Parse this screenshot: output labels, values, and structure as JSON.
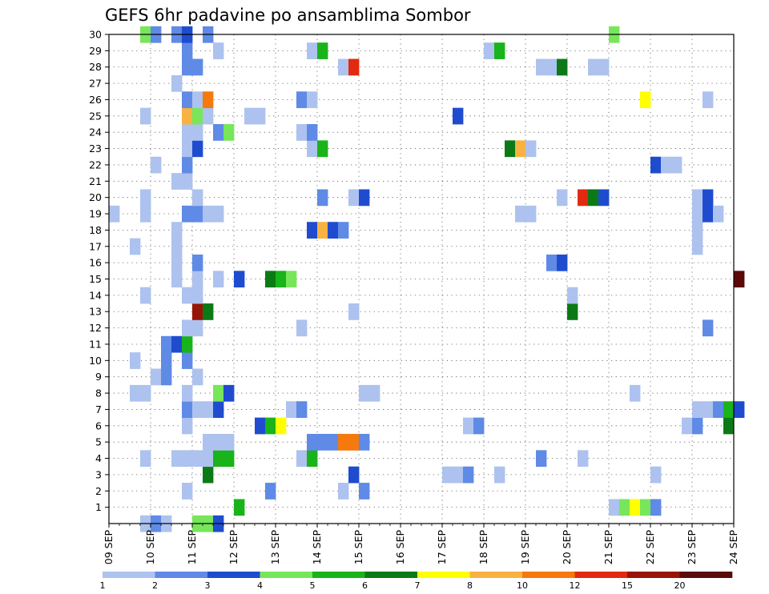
{
  "chart_data": {
    "type": "heatmap",
    "title": "GEFS 6hr padavine po ansamblima Sombor",
    "xlabel": "",
    "ylabel": "",
    "x_tick_labels": [
      "09 SEP",
      "10 SEP",
      "11 SEP",
      "12 SEP",
      "13 SEP",
      "14 SEP",
      "15 SEP",
      "16 SEP",
      "17 SEP",
      "18 SEP",
      "19 SEP",
      "20 SEP",
      "21 SEP",
      "22 SEP",
      "23 SEP",
      "24 SEP"
    ],
    "y_tick_labels": [
      "1",
      "2",
      "3",
      "4",
      "5",
      "6",
      "7",
      "8",
      "9",
      "10",
      "11",
      "12",
      "13",
      "14",
      "15",
      "16",
      "17",
      "18",
      "19",
      "20",
      "21",
      "22",
      "23",
      "24",
      "25",
      "26",
      "27",
      "28",
      "29",
      "30"
    ],
    "x_range": [
      "09 SEP 00z",
      "24 SEP 00z"
    ],
    "x_step_hours": 6,
    "y_range": [
      0,
      30
    ],
    "grid": "dotted",
    "colorbar": {
      "labels": [
        "1",
        "2",
        "3",
        "4",
        "5",
        "6",
        "7",
        "8",
        "10",
        "12",
        "15",
        "20"
      ],
      "colors": [
        "#adc2ee",
        "#5f8ae6",
        "#1f4ccf",
        "#77e65a",
        "#19b31a",
        "#0b7a16",
        "#ffff00",
        "#f8b241",
        "#f5790c",
        "#e22a10",
        "#981407",
        "#5a0a08"
      ]
    },
    "cell_colors": {
      "a": "#adc2ee",
      "b": "#5f8ae6",
      "c": "#1f4ccf",
      "d": "#77e65a",
      "e": "#19b31a",
      "f": "#0b7a16",
      "g": "#ffff00",
      "h": "#f8b241",
      "i": "#f5790c",
      "j": "#e22a10",
      "k": "#981407",
      "l": "#5a0a08"
    },
    "cells": [
      [
        0,
        3,
        "a"
      ],
      [
        0,
        4,
        "b"
      ],
      [
        0,
        5,
        "a"
      ],
      [
        0,
        8,
        "d"
      ],
      [
        0,
        9,
        "d"
      ],
      [
        0,
        10,
        "c"
      ],
      [
        1,
        12,
        "e"
      ],
      [
        1,
        48,
        "a"
      ],
      [
        1,
        49,
        "d"
      ],
      [
        1,
        50,
        "g"
      ],
      [
        1,
        51,
        "d"
      ],
      [
        1,
        52,
        "b"
      ],
      [
        2,
        7,
        "a"
      ],
      [
        2,
        15,
        "b"
      ],
      [
        2,
        22,
        "a"
      ],
      [
        2,
        24,
        "b"
      ],
      [
        3,
        9,
        "f"
      ],
      [
        3,
        23,
        "c"
      ],
      [
        3,
        32,
        "a"
      ],
      [
        3,
        33,
        "a"
      ],
      [
        3,
        34,
        "b"
      ],
      [
        3,
        37,
        "a"
      ],
      [
        3,
        52,
        "a"
      ],
      [
        4,
        3,
        "a"
      ],
      [
        4,
        6,
        "a"
      ],
      [
        4,
        7,
        "a"
      ],
      [
        4,
        8,
        "a"
      ],
      [
        4,
        9,
        "a"
      ],
      [
        4,
        10,
        "e"
      ],
      [
        4,
        11,
        "e"
      ],
      [
        4,
        18,
        "a"
      ],
      [
        4,
        19,
        "e"
      ],
      [
        4,
        41,
        "b"
      ],
      [
        4,
        45,
        "a"
      ],
      [
        5,
        9,
        "a"
      ],
      [
        5,
        10,
        "a"
      ],
      [
        5,
        11,
        "a"
      ],
      [
        5,
        19,
        "b"
      ],
      [
        5,
        20,
        "b"
      ],
      [
        5,
        21,
        "b"
      ],
      [
        5,
        22,
        "i"
      ],
      [
        5,
        23,
        "i"
      ],
      [
        5,
        24,
        "b"
      ],
      [
        6,
        7,
        "a"
      ],
      [
        6,
        14,
        "c"
      ],
      [
        6,
        15,
        "e"
      ],
      [
        6,
        16,
        "g"
      ],
      [
        6,
        34,
        "a"
      ],
      [
        6,
        35,
        "b"
      ],
      [
        6,
        55,
        "a"
      ],
      [
        6,
        56,
        "b"
      ],
      [
        6,
        59,
        "f"
      ],
      [
        7,
        7,
        "b"
      ],
      [
        7,
        8,
        "a"
      ],
      [
        7,
        9,
        "a"
      ],
      [
        7,
        10,
        "c"
      ],
      [
        7,
        17,
        "a"
      ],
      [
        7,
        18,
        "b"
      ],
      [
        7,
        56,
        "a"
      ],
      [
        7,
        57,
        "a"
      ],
      [
        7,
        58,
        "b"
      ],
      [
        7,
        59,
        "e"
      ],
      [
        7,
        60,
        "c"
      ],
      [
        8,
        2,
        "a"
      ],
      [
        8,
        3,
        "a"
      ],
      [
        8,
        7,
        "a"
      ],
      [
        8,
        10,
        "d"
      ],
      [
        8,
        11,
        "c"
      ],
      [
        8,
        24,
        "a"
      ],
      [
        8,
        25,
        "a"
      ],
      [
        8,
        50,
        "a"
      ],
      [
        9,
        4,
        "a"
      ],
      [
        9,
        5,
        "b"
      ],
      [
        9,
        8,
        "a"
      ],
      [
        10,
        2,
        "a"
      ],
      [
        10,
        5,
        "b"
      ],
      [
        10,
        7,
        "b"
      ],
      [
        11,
        5,
        "b"
      ],
      [
        11,
        6,
        "c"
      ],
      [
        11,
        7,
        "e"
      ],
      [
        12,
        7,
        "a"
      ],
      [
        12,
        8,
        "a"
      ],
      [
        12,
        18,
        "a"
      ],
      [
        12,
        57,
        "b"
      ],
      [
        13,
        8,
        "k"
      ],
      [
        13,
        9,
        "f"
      ],
      [
        13,
        23,
        "a"
      ],
      [
        13,
        44,
        "f"
      ],
      [
        14,
        3,
        "a"
      ],
      [
        14,
        7,
        "a"
      ],
      [
        14,
        8,
        "a"
      ],
      [
        14,
        44,
        "a"
      ],
      [
        15,
        6,
        "a"
      ],
      [
        15,
        8,
        "a"
      ],
      [
        15,
        10,
        "a"
      ],
      [
        15,
        12,
        "c"
      ],
      [
        15,
        15,
        "f"
      ],
      [
        15,
        16,
        "e"
      ],
      [
        15,
        17,
        "d"
      ],
      [
        15,
        60,
        "l"
      ],
      [
        16,
        6,
        "a"
      ],
      [
        16,
        8,
        "b"
      ],
      [
        16,
        42,
        "b"
      ],
      [
        16,
        43,
        "c"
      ],
      [
        17,
        2,
        "a"
      ],
      [
        17,
        6,
        "a"
      ],
      [
        17,
        56,
        "a"
      ],
      [
        18,
        6,
        "a"
      ],
      [
        18,
        19,
        "c"
      ],
      [
        18,
        20,
        "h"
      ],
      [
        18,
        21,
        "c"
      ],
      [
        18,
        22,
        "b"
      ],
      [
        18,
        56,
        "a"
      ],
      [
        19,
        0,
        "a"
      ],
      [
        19,
        3,
        "a"
      ],
      [
        19,
        7,
        "b"
      ],
      [
        19,
        8,
        "b"
      ],
      [
        19,
        9,
        "a"
      ],
      [
        19,
        10,
        "a"
      ],
      [
        19,
        39,
        "a"
      ],
      [
        19,
        40,
        "a"
      ],
      [
        19,
        56,
        "a"
      ],
      [
        19,
        57,
        "c"
      ],
      [
        19,
        58,
        "a"
      ],
      [
        20,
        3,
        "a"
      ],
      [
        20,
        8,
        "a"
      ],
      [
        20,
        20,
        "b"
      ],
      [
        20,
        23,
        "a"
      ],
      [
        20,
        24,
        "c"
      ],
      [
        20,
        43,
        "a"
      ],
      [
        20,
        45,
        "j"
      ],
      [
        20,
        46,
        "f"
      ],
      [
        20,
        47,
        "c"
      ],
      [
        20,
        56,
        "a"
      ],
      [
        20,
        57,
        "c"
      ],
      [
        21,
        6,
        "a"
      ],
      [
        21,
        7,
        "a"
      ],
      [
        22,
        4,
        "a"
      ],
      [
        22,
        7,
        "b"
      ],
      [
        22,
        52,
        "c"
      ],
      [
        22,
        53,
        "a"
      ],
      [
        22,
        54,
        "a"
      ],
      [
        23,
        7,
        "a"
      ],
      [
        23,
        8,
        "c"
      ],
      [
        23,
        19,
        "a"
      ],
      [
        23,
        20,
        "e"
      ],
      [
        23,
        38,
        "f"
      ],
      [
        23,
        39,
        "h"
      ],
      [
        23,
        40,
        "a"
      ],
      [
        24,
        7,
        "a"
      ],
      [
        24,
        8,
        "a"
      ],
      [
        24,
        10,
        "b"
      ],
      [
        24,
        11,
        "d"
      ],
      [
        24,
        18,
        "a"
      ],
      [
        24,
        19,
        "b"
      ],
      [
        25,
        3,
        "a"
      ],
      [
        25,
        7,
        "h"
      ],
      [
        25,
        8,
        "d"
      ],
      [
        25,
        9,
        "a"
      ],
      [
        25,
        13,
        "a"
      ],
      [
        25,
        14,
        "a"
      ],
      [
        25,
        33,
        "c"
      ],
      [
        26,
        7,
        "b"
      ],
      [
        26,
        8,
        "a"
      ],
      [
        26,
        9,
        "i"
      ],
      [
        26,
        18,
        "b"
      ],
      [
        26,
        19,
        "a"
      ],
      [
        26,
        51,
        "g"
      ],
      [
        26,
        57,
        "a"
      ],
      [
        27,
        6,
        "a"
      ],
      [
        28,
        7,
        "b"
      ],
      [
        28,
        8,
        "b"
      ],
      [
        28,
        22,
        "a"
      ],
      [
        28,
        23,
        "j"
      ],
      [
        28,
        41,
        "a"
      ],
      [
        28,
        42,
        "a"
      ],
      [
        28,
        43,
        "f"
      ],
      [
        28,
        46,
        "a"
      ],
      [
        28,
        47,
        "a"
      ],
      [
        29,
        7,
        "b"
      ],
      [
        29,
        10,
        "a"
      ],
      [
        29,
        19,
        "a"
      ],
      [
        29,
        20,
        "e"
      ],
      [
        29,
        36,
        "a"
      ],
      [
        29,
        37,
        "e"
      ],
      [
        30,
        3,
        "d"
      ],
      [
        30,
        4,
        "b"
      ],
      [
        30,
        6,
        "b"
      ],
      [
        30,
        7,
        "c"
      ],
      [
        30,
        9,
        "b"
      ],
      [
        30,
        48,
        "d"
      ]
    ]
  }
}
